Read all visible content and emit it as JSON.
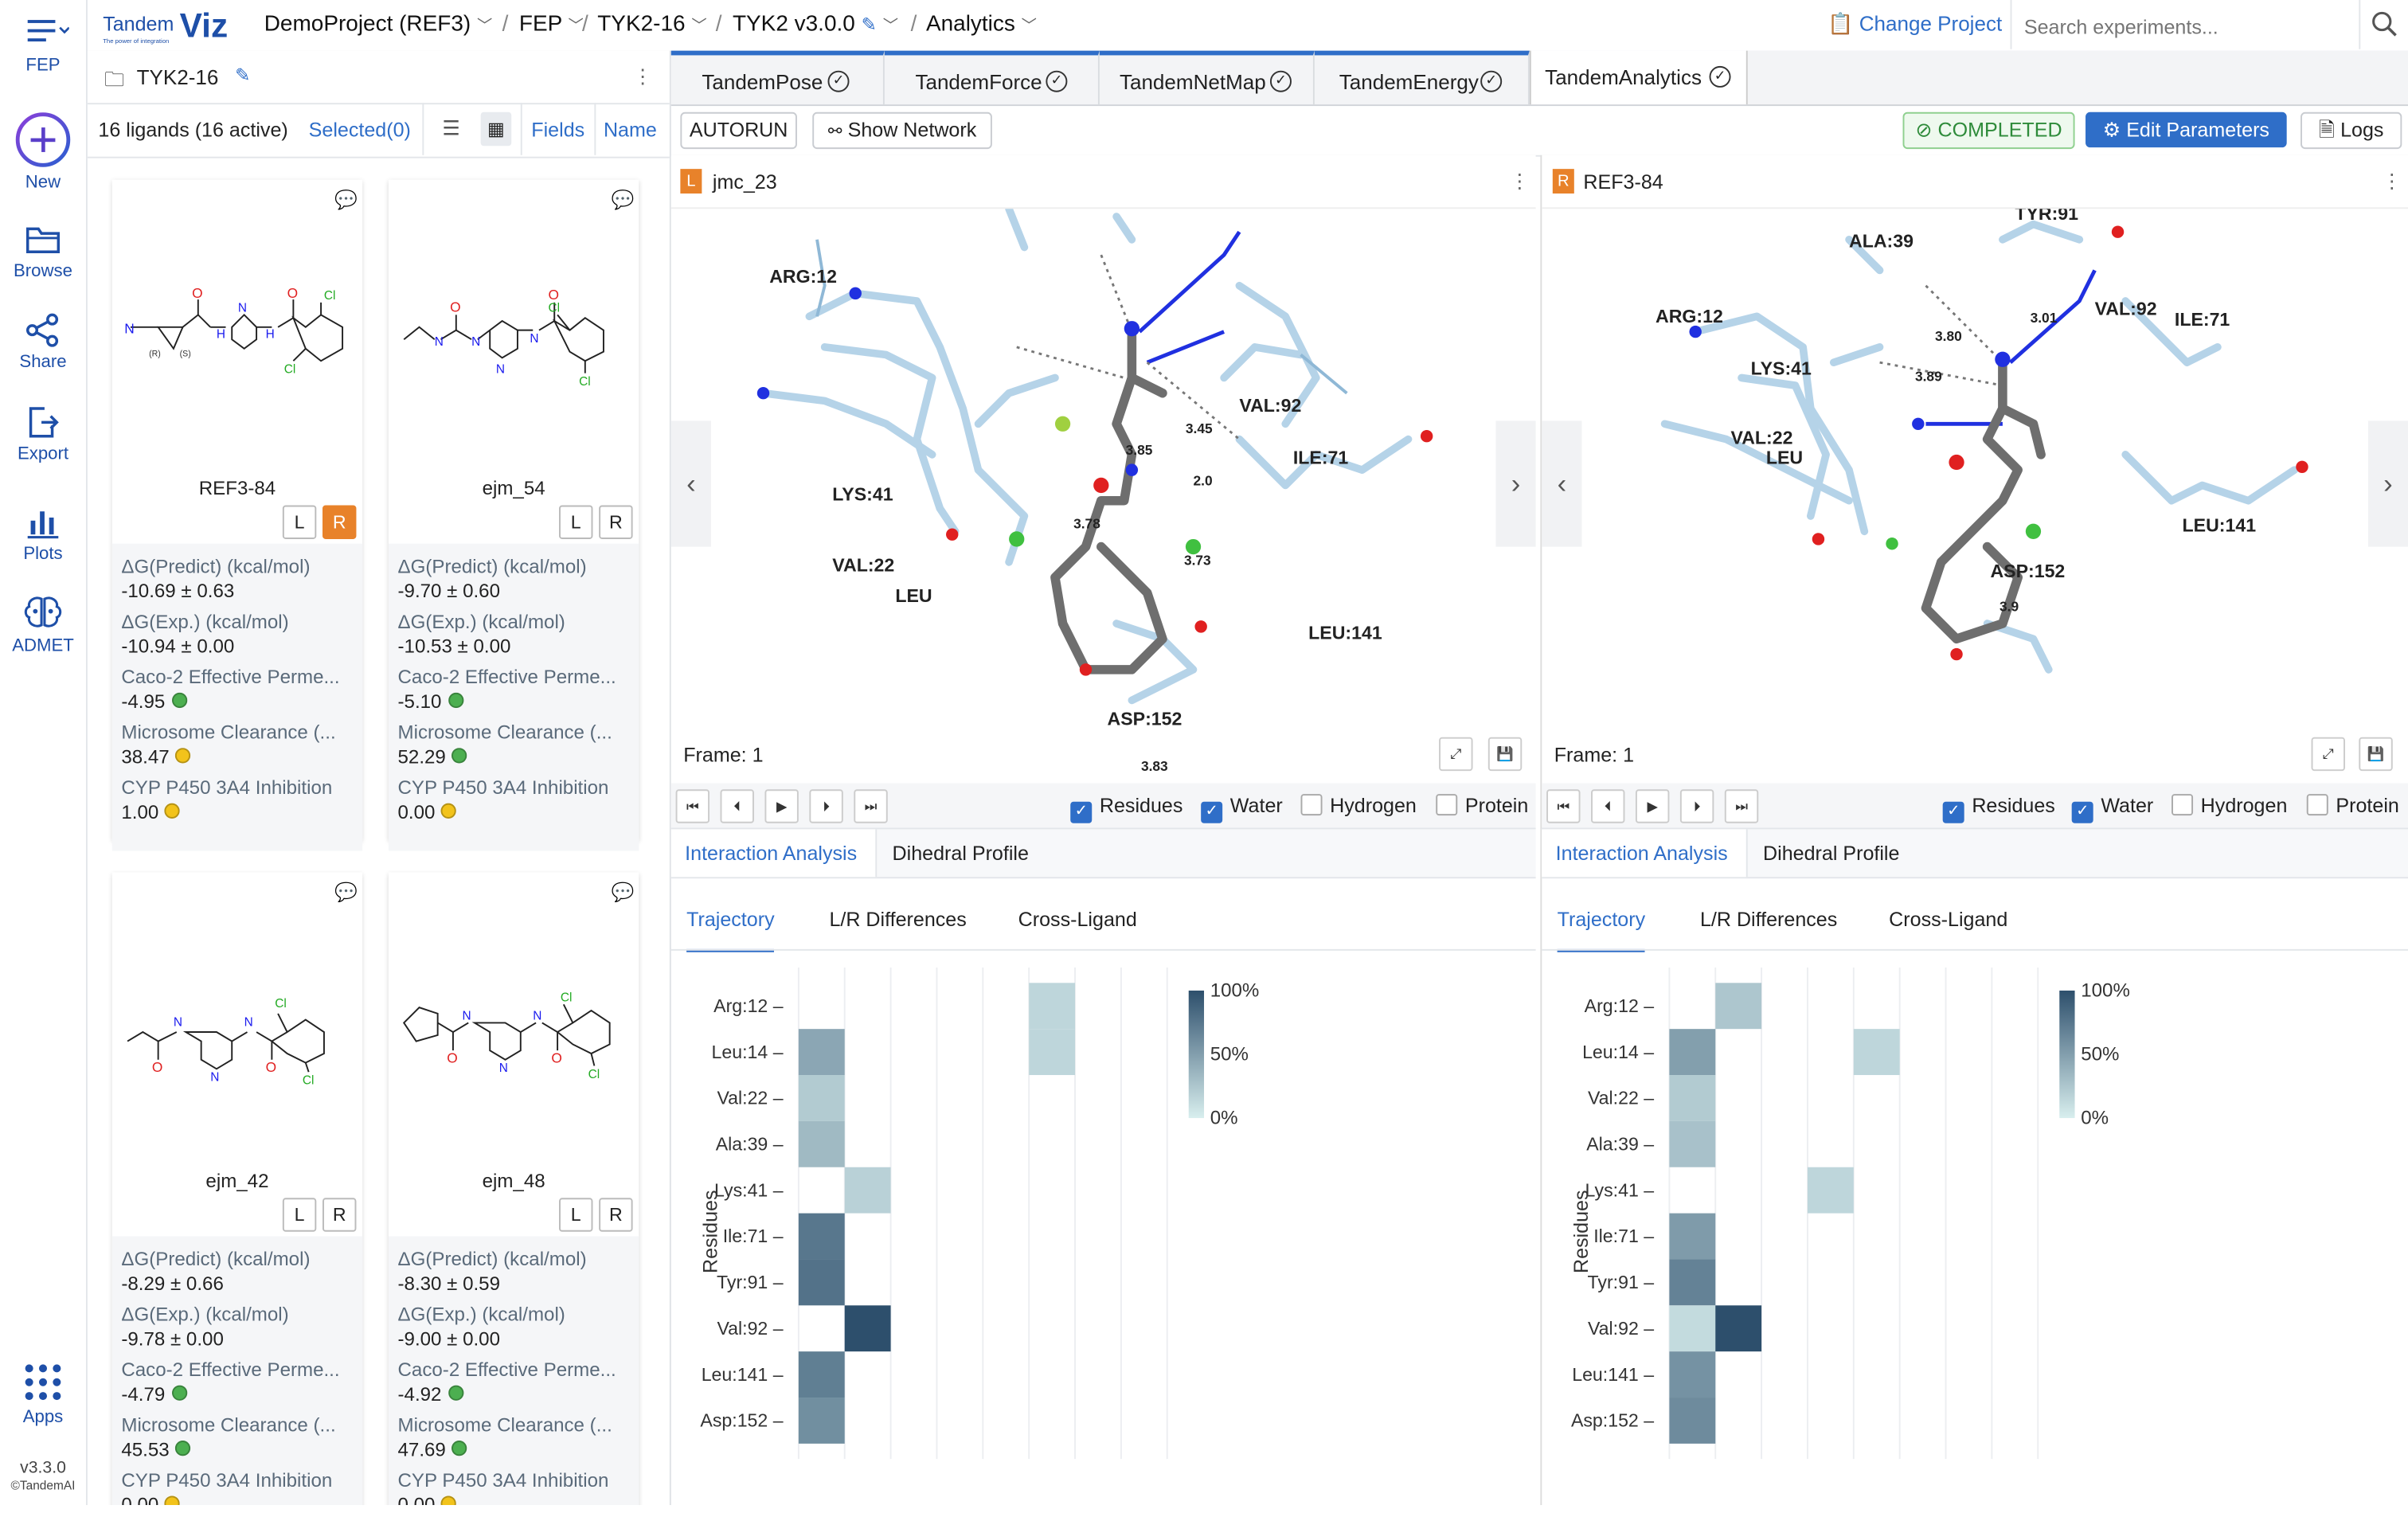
{
  "rail": {
    "menu": "FEP",
    "items": [
      {
        "label": "New",
        "icon": "plus-circle-icon"
      },
      {
        "label": "Browse",
        "icon": "folder-icon"
      },
      {
        "label": "Share",
        "icon": "share-icon"
      },
      {
        "label": "Export",
        "icon": "export-icon"
      },
      {
        "label": "Plots",
        "icon": "bar-chart-icon"
      },
      {
        "label": "ADMET",
        "icon": "brain-icon"
      }
    ],
    "apps": "Apps",
    "version": "v3.3.0",
    "copyright": "©TandemAI"
  },
  "brand": {
    "name": "TandemViz",
    "tagline": "The power of integration"
  },
  "breadcrumb": [
    "DemoProject (REF3)",
    "FEP",
    "TYK2-16",
    "TYK2 v3.0.0",
    "Analytics"
  ],
  "topbar": {
    "change_project": "Change Project",
    "search_placeholder": "Search experiments..."
  },
  "ligand_panel": {
    "folder": "TYK2-16",
    "count": "16 ligands (16 active)",
    "selected": "Selected(0)",
    "fields": "Fields",
    "name": "Name"
  },
  "cards": [
    {
      "name": "REF3-84",
      "L": "L",
      "R": "R",
      "r_active": true,
      "props": [
        {
          "label": "ΔG(Predict) (kcal/mol)",
          "value": "-10.69 ± 0.63"
        },
        {
          "label": "ΔG(Exp.) (kcal/mol)",
          "value": "-10.94 ± 0.00"
        },
        {
          "label": "Caco-2 Effective Perme...",
          "value": "-4.95",
          "dot": "#4caf50"
        },
        {
          "label": "Microsome Clearance (...",
          "value": "38.47",
          "dot": "#f2c31b"
        },
        {
          "label": "CYP P450 3A4 Inhibition",
          "value": "1.00",
          "dot": "#f2c31b"
        }
      ]
    },
    {
      "name": "ejm_54",
      "L": "L",
      "R": "R",
      "r_active": false,
      "props": [
        {
          "label": "ΔG(Predict) (kcal/mol)",
          "value": "-9.70 ± 0.60"
        },
        {
          "label": "ΔG(Exp.) (kcal/mol)",
          "value": "-10.53 ± 0.00"
        },
        {
          "label": "Caco-2 Effective Perme...",
          "value": "-5.10",
          "dot": "#4caf50"
        },
        {
          "label": "Microsome Clearance (...",
          "value": "52.29",
          "dot": "#4caf50"
        },
        {
          "label": "CYP P450 3A4 Inhibition",
          "value": "0.00",
          "dot": "#f2c31b"
        }
      ]
    },
    {
      "name": "ejm_42",
      "L": "L",
      "R": "R",
      "r_active": false,
      "props": [
        {
          "label": "ΔG(Predict) (kcal/mol)",
          "value": "-8.29 ± 0.66"
        },
        {
          "label": "ΔG(Exp.) (kcal/mol)",
          "value": "-9.78 ± 0.00"
        },
        {
          "label": "Caco-2 Effective Perme...",
          "value": "-4.79",
          "dot": "#4caf50"
        },
        {
          "label": "Microsome Clearance (...",
          "value": "45.53",
          "dot": "#4caf50"
        },
        {
          "label": "CYP P450 3A4 Inhibition",
          "value": "0.00",
          "dot": "#f2c31b"
        }
      ]
    },
    {
      "name": "ejm_48",
      "L": "L",
      "R": "R",
      "r_active": false,
      "props": [
        {
          "label": "ΔG(Predict) (kcal/mol)",
          "value": "-8.30 ± 0.59"
        },
        {
          "label": "ΔG(Exp.) (kcal/mol)",
          "value": "-9.00 ± 0.00"
        },
        {
          "label": "Caco-2 Effective Perme...",
          "value": "-4.92",
          "dot": "#4caf50"
        },
        {
          "label": "Microsome Clearance (...",
          "value": "47.69",
          "dot": "#4caf50"
        },
        {
          "label": "CYP P450 3A4 Inhibition",
          "value": "0.00",
          "dot": "#f2c31b"
        }
      ]
    }
  ],
  "tabs": [
    "TandemPose",
    "TandemForce",
    "TandemNetMap",
    "TandemEnergy",
    "TandemAnalytics"
  ],
  "toolbar": {
    "autorun": "AUTORUN",
    "show_network": "Show Network",
    "status": "COMPLETED",
    "edit": "Edit Parameters",
    "logs": "Logs"
  },
  "viewers": [
    {
      "badge": "L",
      "title": "jmc_23",
      "frame": "Frame: 1",
      "labels": [
        "VAL:92",
        "ARG:12",
        "ILE:71",
        "LYS:41",
        "VAL:22",
        "LEU:141",
        "ASP:152",
        "LEU"
      ],
      "distances": [
        "3.85",
        "3.45",
        "3.78",
        "3.73",
        "2.0",
        "3.83"
      ]
    },
    {
      "badge": "R",
      "title": "REF3-84",
      "frame": "Frame: 1",
      "labels": [
        "TYR:91",
        "ALA:39",
        "ARG:12",
        "VAL:92",
        "ILE:71",
        "LYS:41",
        "VAL:22",
        "LEU:141",
        "ASP:152",
        "LEU"
      ],
      "distances": [
        "3.80",
        "3.01",
        "3.89",
        "3.9"
      ]
    }
  ],
  "checkboxes": [
    {
      "label": "Residues",
      "checked": true
    },
    {
      "label": "Water",
      "checked": true
    },
    {
      "label": "Hydrogen",
      "checked": false
    },
    {
      "label": "Protein",
      "checked": false
    }
  ],
  "analysis_tabs": [
    "Interaction Analysis",
    "Dihedral Profile"
  ],
  "sub_tabs": [
    "Trajectory",
    "L/R Differences",
    "Cross-Ligand"
  ],
  "chart_data": [
    {
      "type": "heatmap",
      "ylabel": "Residues",
      "rows": [
        "Arg:12",
        "Leu:14",
        "Val:22",
        "Ala:39",
        "Lys:41",
        "Ile:71",
        "Tyr:91",
        "Val:92",
        "Leu:141",
        "Asp:152"
      ],
      "columns": 8,
      "colorbar": [
        "100%",
        "50%",
        "0%"
      ],
      "values": [
        [
          0,
          0,
          0,
          0,
          0,
          0.15,
          0,
          0
        ],
        [
          0.45,
          0,
          0,
          0,
          0,
          0.15,
          0,
          0
        ],
        [
          0.22,
          0,
          0,
          0,
          0,
          0,
          0,
          0
        ],
        [
          0.33,
          0,
          0,
          0,
          0,
          0,
          0,
          0
        ],
        [
          0,
          0.18,
          0,
          0,
          0,
          0,
          0,
          0
        ],
        [
          0.75,
          0,
          0,
          0,
          0,
          0,
          0,
          0
        ],
        [
          0.78,
          0,
          0,
          0,
          0,
          0,
          0,
          0
        ],
        [
          0,
          1.0,
          0,
          0,
          0,
          0,
          0,
          0
        ],
        [
          0.7,
          0,
          0,
          0,
          0,
          0,
          0,
          0
        ],
        [
          0.6,
          0,
          0,
          0,
          0,
          0,
          0,
          0
        ]
      ]
    },
    {
      "type": "heatmap",
      "ylabel": "Residues",
      "rows": [
        "Arg:12",
        "Leu:14",
        "Val:22",
        "Ala:39",
        "Lys:41",
        "Ile:71",
        "Tyr:91",
        "Val:92",
        "Leu:141",
        "Asp:152"
      ],
      "columns": 8,
      "colorbar": [
        "100%",
        "50%",
        "0%"
      ],
      "values": [
        [
          0,
          0.25,
          0,
          0,
          0,
          0,
          0,
          0
        ],
        [
          0.5,
          0,
          0,
          0,
          0.15,
          0,
          0,
          0
        ],
        [
          0.22,
          0,
          0,
          0,
          0,
          0,
          0,
          0
        ],
        [
          0.28,
          0,
          0,
          0,
          0,
          0,
          0,
          0
        ],
        [
          0,
          0,
          0,
          0.15,
          0,
          0,
          0,
          0
        ],
        [
          0.52,
          0,
          0,
          0,
          0,
          0,
          0,
          0
        ],
        [
          0.68,
          0,
          0,
          0,
          0,
          0,
          0,
          0
        ],
        [
          0.12,
          1.0,
          0,
          0,
          0,
          0,
          0,
          0
        ],
        [
          0.58,
          0,
          0,
          0,
          0,
          0,
          0,
          0
        ],
        [
          0.62,
          0,
          0,
          0,
          0,
          0,
          0,
          0
        ]
      ]
    }
  ]
}
